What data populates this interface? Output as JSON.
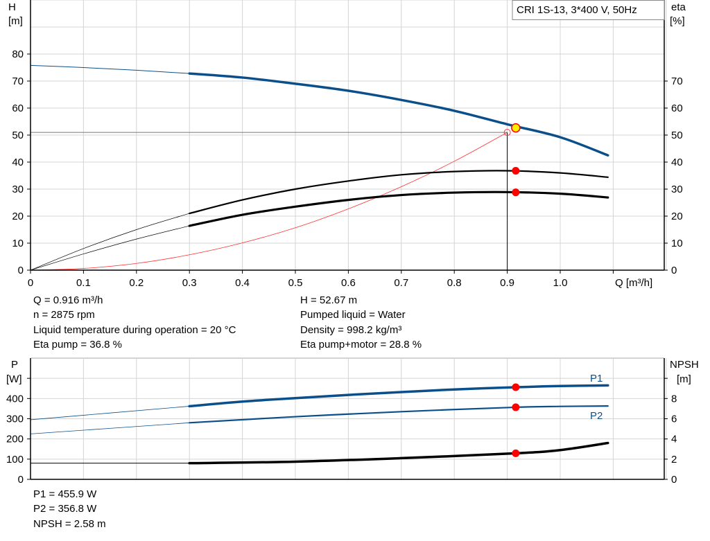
{
  "title_box": "CRI 1S-13, 3*400 V, 50Hz",
  "colors": {
    "head": "#0b4f8a",
    "power": "#0b4f8a",
    "eta": "#000000",
    "npsh": "#000000",
    "system_curve": "#ff3030",
    "marker": "#ff0000",
    "duty_point_fill": "#ffee00",
    "grid": "#d4d4d4"
  },
  "chart_data": [
    {
      "type": "line",
      "xlabel": "Q [m³/h]",
      "ylabel_left": "H",
      "ylabel_left_unit": "[m]",
      "ylabel_right": "eta",
      "ylabel_right_unit": "[%]",
      "xlim": [
        0,
        1.2
      ],
      "ylim": [
        0,
        100
      ],
      "y2lim": [
        0,
        100
      ],
      "x_ticks": [
        "0",
        "0.1",
        "0.2",
        "0.3",
        "0.4",
        "0.5",
        "0.6",
        "0.7",
        "0.8",
        "0.9",
        "1.0"
      ],
      "y_ticks": [
        "0",
        "10",
        "20",
        "30",
        "40",
        "50",
        "60",
        "70",
        "80"
      ],
      "y2_ticks": [
        "0",
        "10",
        "20",
        "30",
        "40",
        "50",
        "60",
        "70"
      ],
      "grid": true,
      "series": [
        {
          "key": "H",
          "axis": "left",
          "x": [
            0,
            0.1,
            0.2,
            0.3,
            0.4,
            0.5,
            0.6,
            0.7,
            0.8,
            0.9,
            1.0,
            1.09
          ],
          "y": [
            75.8,
            75.0,
            74.0,
            72.8,
            71.3,
            69.0,
            66.4,
            63.0,
            59.0,
            54.0,
            49.2,
            42.5
          ]
        },
        {
          "key": "eta_pump",
          "axis": "right",
          "x": [
            0,
            0.1,
            0.2,
            0.3,
            0.4,
            0.5,
            0.6,
            0.7,
            0.8,
            0.9,
            1.0,
            1.09
          ],
          "y": [
            0,
            8,
            15,
            21,
            26,
            30,
            33,
            35.3,
            36.5,
            36.8,
            36.0,
            34.4
          ]
        },
        {
          "key": "eta_pump_motor",
          "axis": "right",
          "x": [
            0,
            0.1,
            0.2,
            0.3,
            0.4,
            0.5,
            0.6,
            0.7,
            0.8,
            0.9,
            1.0,
            1.09
          ],
          "y": [
            0,
            6,
            11.5,
            16.4,
            20.5,
            23.5,
            26,
            27.8,
            28.7,
            28.9,
            28.3,
            26.9
          ]
        },
        {
          "key": "system_curve",
          "axis": "left",
          "x": [
            0,
            0.1,
            0.2,
            0.3,
            0.4,
            0.5,
            0.6,
            0.7,
            0.8,
            0.9
          ],
          "y": [
            0,
            0.63,
            2.5,
            5.7,
            10.1,
            15.7,
            22.7,
            30.9,
            40.3,
            51.0
          ]
        }
      ],
      "duty_point": {
        "Q": 0.916,
        "H": 52.67,
        "eta_pump": 36.8,
        "eta_pump_motor": 28.8
      },
      "required_point": {
        "Q": 0.9,
        "H": 51.0
      }
    },
    {
      "type": "line",
      "ylabel_left": "P",
      "ylabel_left_unit": "[W]",
      "ylabel_right": "NPSH",
      "ylabel_right_unit": "[m]",
      "xlim": [
        0,
        1.2
      ],
      "ylim": [
        0,
        600
      ],
      "y2lim": [
        0,
        12
      ],
      "y_ticks": [
        "0",
        "100",
        "200",
        "300",
        "400"
      ],
      "y2_ticks": [
        "0",
        "2",
        "4",
        "6",
        "8"
      ],
      "grid": true,
      "series": [
        {
          "name": "P1",
          "axis": "left",
          "x": [
            0,
            0.3,
            0.4,
            0.5,
            0.6,
            0.7,
            0.8,
            0.916,
            1.0,
            1.09
          ],
          "y": [
            295,
            362,
            385,
            402,
            418,
            432,
            445,
            455.9,
            462,
            465
          ]
        },
        {
          "name": "P2",
          "axis": "left",
          "x": [
            0,
            0.3,
            0.5,
            0.7,
            0.916,
            1.0,
            1.09
          ],
          "y": [
            225,
            280,
            310,
            335,
            356.8,
            361,
            363
          ]
        },
        {
          "key": "NPSH",
          "axis": "right",
          "x": [
            0,
            0.3,
            0.5,
            0.7,
            0.916,
            1.0,
            1.09
          ],
          "y": [
            1.6,
            1.6,
            1.75,
            2.1,
            2.58,
            2.9,
            3.6
          ]
        }
      ],
      "duty_point": {
        "Q": 0.916,
        "P1": 455.9,
        "P2": 356.8,
        "NPSH": 2.58
      }
    }
  ],
  "info_top": {
    "left": [
      "Q = 0.916 m³/h",
      "n = 2875 rpm",
      "Liquid temperature during operation = 20 °C",
      "Eta pump = 36.8 %"
    ],
    "right": [
      "H = 52.67 m",
      "Pumped liquid = Water",
      "Density = 998.2 kg/m³",
      "Eta pump+motor = 28.8 %"
    ]
  },
  "info_bottom": [
    "P1 = 455.9 W",
    "P2 = 356.8 W",
    "NPSH = 2.58 m"
  ]
}
